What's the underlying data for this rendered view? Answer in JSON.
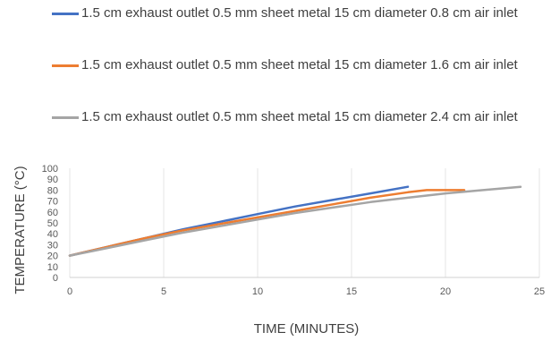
{
  "chart_data": {
    "type": "line",
    "xlabel": "TIME (MINUTES)",
    "ylabel": "TEMPERATURE (°C)",
    "xlim": [
      0,
      25
    ],
    "ylim": [
      0,
      100
    ],
    "x_ticks": [
      0,
      5,
      10,
      15,
      20,
      25
    ],
    "y_ticks": [
      0,
      10,
      20,
      30,
      40,
      50,
      60,
      70,
      80,
      90,
      100
    ],
    "grid": "vertical",
    "legend_position": "top",
    "series": [
      {
        "name": "1.5 cm exhaust outlet 0.5 mm sheet metal 15 cm diameter 0.8 cm air inlet",
        "color": "#4472c4",
        "x": [
          0,
          2,
          4,
          6,
          8,
          10,
          12,
          14,
          16,
          18
        ],
        "y": [
          20,
          28,
          36,
          44,
          51,
          58,
          65,
          71,
          77,
          83
        ]
      },
      {
        "name": "1.5 cm exhaust outlet 0.5 mm sheet metal 15 cm diameter 1.6 cm air inlet",
        "color": "#ed7d31",
        "x": [
          0,
          2,
          4,
          6,
          8,
          10,
          12,
          14,
          16,
          18,
          19,
          20,
          21
        ],
        "y": [
          20,
          28,
          36,
          43,
          49,
          55,
          61,
          67,
          73,
          78,
          80,
          80,
          80
        ]
      },
      {
        "name": "1.5 cm exhaust outlet 0.5 mm sheet metal 15 cm diameter 2.4 cm air inlet",
        "color": "#a5a5a5",
        "x": [
          0,
          2,
          4,
          6,
          8,
          10,
          12,
          14,
          16,
          18,
          20,
          22,
          24
        ],
        "y": [
          20,
          27,
          34,
          41,
          47,
          53,
          59,
          64,
          69,
          73,
          77,
          80,
          83
        ]
      }
    ]
  }
}
